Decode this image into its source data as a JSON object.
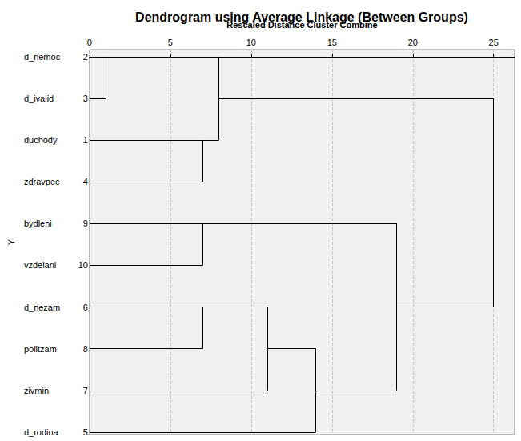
{
  "chart_data": {
    "type": "dendrogram",
    "title": "Dendrogram using Average Linkage (Between Groups)",
    "x_label": "Rescaled Distance Cluster Combine",
    "y_label": "Y",
    "leaves": [
      {
        "label": "d_nemoc",
        "case": 2
      },
      {
        "label": "d_ivalid",
        "case": 3
      },
      {
        "label": "duchody",
        "case": 1
      },
      {
        "label": "zdravpec",
        "case": 4
      },
      {
        "label": "bydleni",
        "case": 9
      },
      {
        "label": "vzdelani",
        "case": 10
      },
      {
        "label": "d_nezam",
        "case": 6
      },
      {
        "label": "politzam",
        "case": 8
      },
      {
        "label": "zivmin",
        "case": 7
      },
      {
        "label": "d_rodina",
        "case": 5
      }
    ],
    "merges": [
      {
        "clusters": [
          [
            2
          ],
          [
            3
          ]
        ],
        "distance": 1
      },
      {
        "clusters": [
          [
            1
          ],
          [
            4
          ]
        ],
        "distance": 7
      },
      {
        "clusters": [
          [
            9
          ],
          [
            10
          ]
        ],
        "distance": 7
      },
      {
        "clusters": [
          [
            6
          ],
          [
            8
          ]
        ],
        "distance": 7
      },
      {
        "clusters": [
          [
            2,
            3
          ],
          [
            1,
            4
          ]
        ],
        "distance": 8
      },
      {
        "clusters": [
          [
            6,
            8
          ],
          [
            7
          ]
        ],
        "distance": 11
      },
      {
        "clusters": [
          [
            6,
            7,
            8
          ],
          [
            5
          ]
        ],
        "distance": 14
      },
      {
        "clusters": [
          [
            9,
            10
          ],
          [
            5,
            6,
            7,
            8
          ]
        ],
        "distance": 19
      },
      {
        "clusters": [
          [
            1,
            2,
            3,
            4
          ],
          [
            5,
            6,
            7,
            8,
            9,
            10
          ]
        ],
        "distance": 25
      }
    ],
    "xlim": [
      0,
      26.3
    ],
    "xticks": [
      0,
      5,
      10,
      15,
      20,
      25
    ],
    "color": "#000000",
    "grid": true
  }
}
